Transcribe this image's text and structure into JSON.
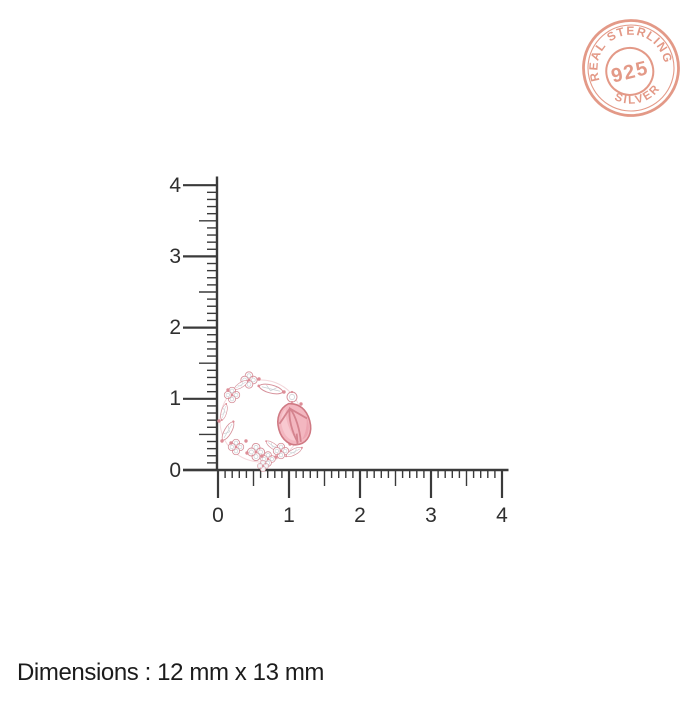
{
  "badge": {
    "top_text": "REAL STERLING",
    "center_text": "925",
    "bottom_text": "SILVER",
    "color": "#e18f7b"
  },
  "rulers": {
    "color": "#3a3a3a",
    "label_color": "#2f2f2f",
    "vertical_labels": [
      "4",
      "3",
      "2",
      "1",
      "0"
    ],
    "horizontal_labels": [
      "0",
      "1",
      "2",
      "3",
      "4"
    ]
  },
  "product": {
    "accent_color": "#f3b7c0",
    "metal_color": "#dd8d97"
  },
  "footer": {
    "dimensions_text": "Dimensions : 12 mm x 13 mm"
  }
}
